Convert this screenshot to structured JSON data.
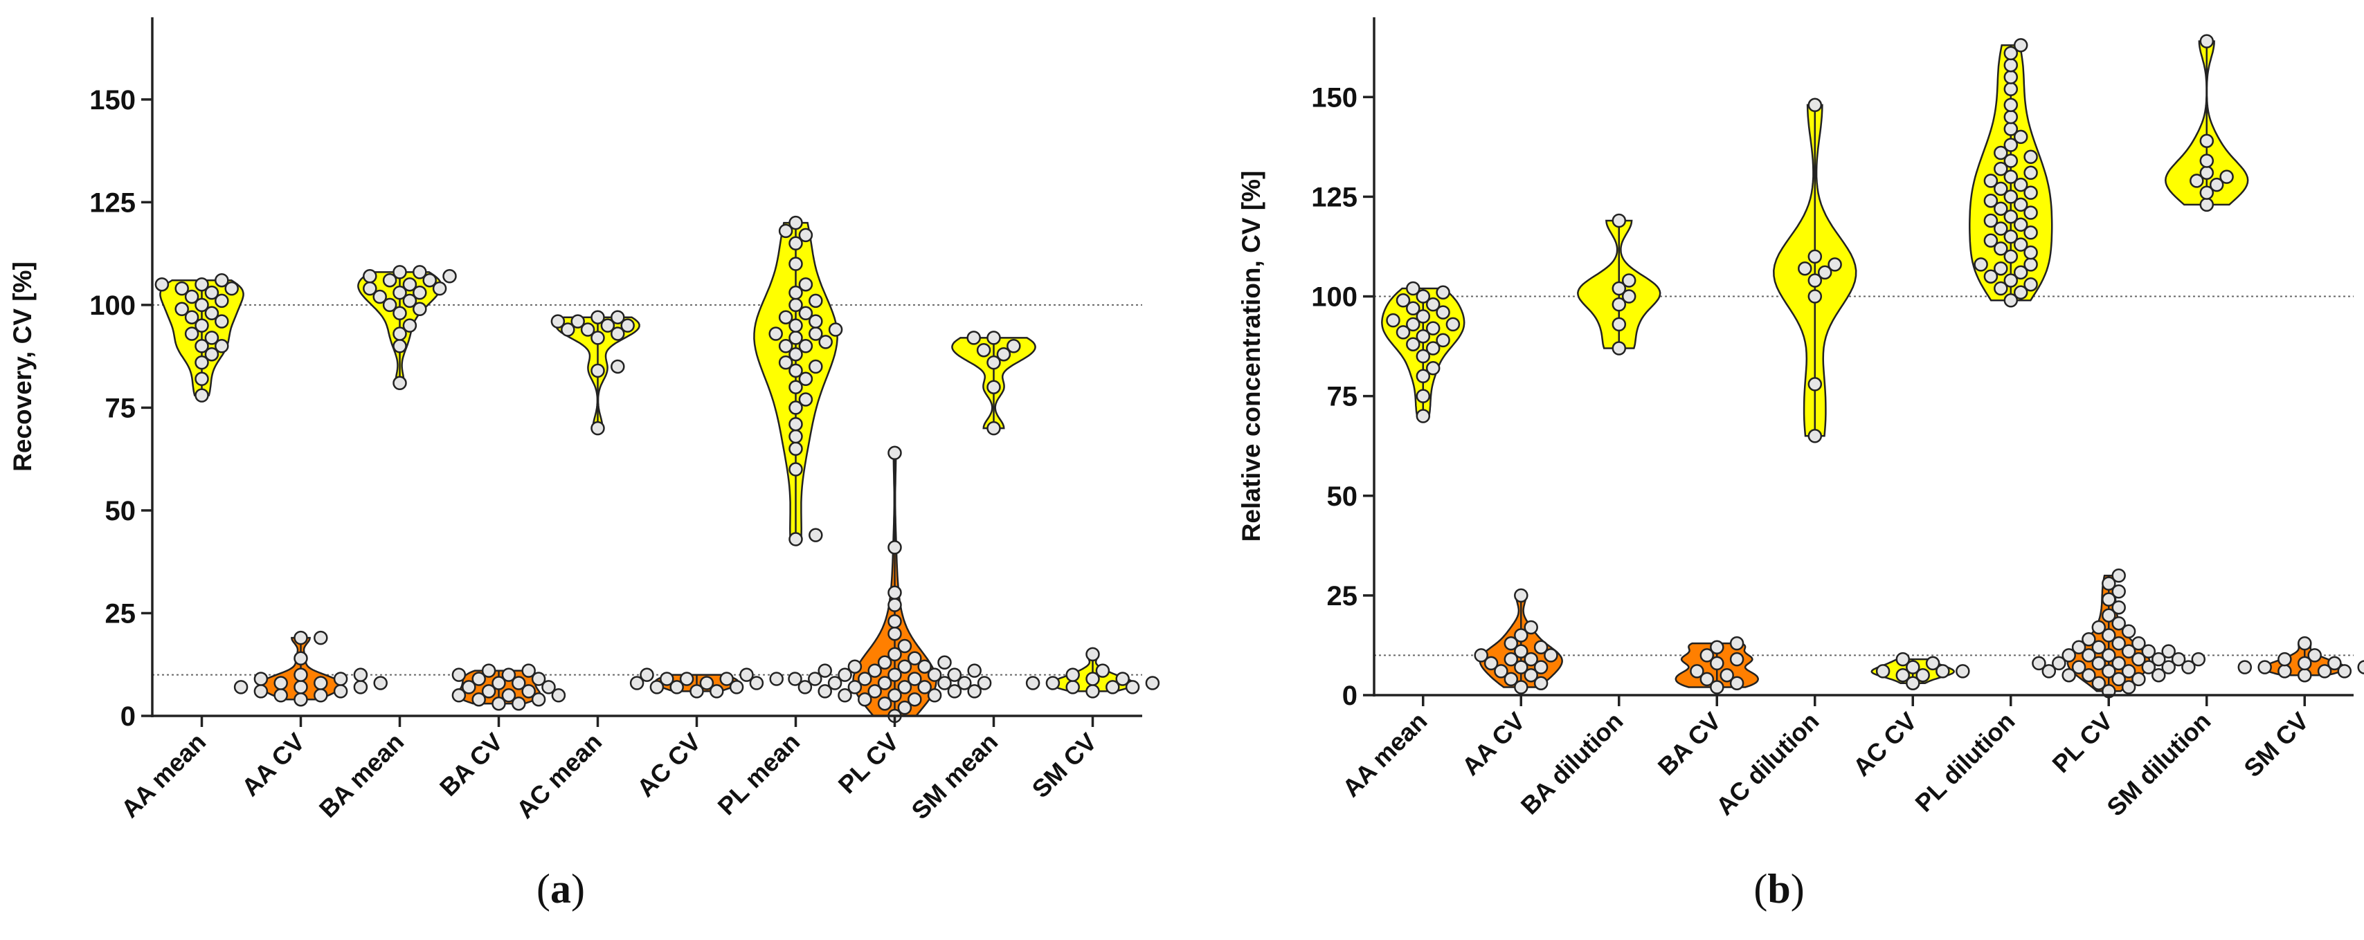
{
  "chart_data": [
    {
      "type": "violin",
      "panel_label": "a",
      "ylabel": "Recovery, CV [%]",
      "ylim": [
        0,
        170
      ],
      "yticks": [
        0,
        25,
        50,
        75,
        100,
        125,
        150
      ],
      "reference_lines": [
        100,
        10
      ],
      "grid": false,
      "categories": [
        "AA mean",
        "AA CV",
        "BA mean",
        "BA CV",
        "AC mean",
        "AC CV",
        "PL mean",
        "PL CV",
        "SM mean",
        "SM CV"
      ],
      "series": [
        {
          "category": "AA mean",
          "color": "#ffff00",
          "points": [
            78,
            82,
            86,
            88,
            90,
            90,
            92,
            93,
            95,
            96,
            97,
            98,
            99,
            100,
            101,
            102,
            103,
            104,
            104,
            105,
            105,
            106
          ]
        },
        {
          "category": "AA CV",
          "color": "#ff7f00",
          "points": [
            4,
            5,
            5,
            6,
            6,
            7,
            7,
            7,
            8,
            8,
            8,
            9,
            9,
            10,
            10,
            14,
            19,
            19
          ]
        },
        {
          "category": "BA mean",
          "color": "#ffff00",
          "points": [
            81,
            90,
            93,
            95,
            98,
            99,
            100,
            101,
            102,
            103,
            103,
            104,
            104,
            105,
            106,
            106,
            107,
            107,
            108,
            108
          ]
        },
        {
          "category": "BA CV",
          "color": "#ff7f00",
          "points": [
            3,
            3,
            4,
            4,
            5,
            5,
            5,
            6,
            6,
            7,
            7,
            8,
            8,
            9,
            9,
            10,
            10,
            11,
            11
          ]
        },
        {
          "category": "AC mean",
          "color": "#ffff00",
          "points": [
            70,
            84,
            85,
            92,
            93,
            94,
            94,
            95,
            95,
            96,
            96,
            97,
            97
          ]
        },
        {
          "category": "AC CV",
          "color": "#ff7f00",
          "points": [
            6,
            6,
            7,
            7,
            7,
            8,
            8,
            8,
            9,
            9,
            9,
            9,
            10,
            10
          ]
        },
        {
          "category": "PL mean",
          "color": "#ffff00",
          "points": [
            43,
            44,
            60,
            65,
            68,
            71,
            75,
            77,
            80,
            82,
            84,
            85,
            86,
            88,
            90,
            90,
            91,
            92,
            93,
            93,
            94,
            95,
            96,
            97,
            98,
            100,
            101,
            103,
            105,
            110,
            115,
            117,
            118,
            120
          ]
        },
        {
          "category": "PL CV",
          "color": "#ff7f00",
          "points": [
            0,
            2,
            3,
            4,
            4,
            5,
            5,
            5,
            6,
            6,
            6,
            6,
            7,
            7,
            7,
            7,
            8,
            8,
            8,
            8,
            8,
            9,
            9,
            9,
            9,
            10,
            10,
            10,
            10,
            11,
            11,
            11,
            12,
            12,
            12,
            13,
            13,
            14,
            15,
            17,
            20,
            23,
            27,
            30,
            41,
            64
          ]
        },
        {
          "category": "SM mean",
          "color": "#ffff00",
          "points": [
            70,
            80,
            86,
            88,
            89,
            90,
            92,
            92
          ]
        },
        {
          "category": "SM CV",
          "color": "#ffff00",
          "points": [
            6,
            7,
            7,
            7,
            8,
            8,
            8,
            9,
            9,
            10,
            11,
            15
          ]
        }
      ]
    },
    {
      "type": "violin",
      "panel_label": "b",
      "ylabel": "Relative concentration, CV [%]",
      "ylim": [
        0,
        170
      ],
      "yticks": [
        0,
        25,
        50,
        75,
        100,
        125,
        150
      ],
      "reference_lines": [
        100,
        10
      ],
      "grid": false,
      "categories": [
        "AA mean",
        "AA CV",
        "BA dilution",
        "BA CV",
        "AC dilution",
        "AC CV",
        "PL dilution",
        "PL CV",
        "SM dilution",
        "SM CV"
      ],
      "series": [
        {
          "category": "AA mean",
          "color": "#ffff00",
          "points": [
            70,
            75,
            80,
            82,
            85,
            87,
            88,
            89,
            90,
            91,
            92,
            93,
            93,
            94,
            95,
            96,
            97,
            98,
            99,
            100,
            101,
            102
          ]
        },
        {
          "category": "AA CV",
          "color": "#ff7f00",
          "points": [
            2,
            3,
            4,
            5,
            6,
            7,
            7,
            8,
            9,
            9,
            10,
            10,
            11,
            12,
            13,
            15,
            17,
            25
          ]
        },
        {
          "category": "BA dilution",
          "color": "#ffff00",
          "points": [
            87,
            93,
            98,
            100,
            102,
            104,
            119
          ]
        },
        {
          "category": "BA CV",
          "color": "#ff7f00",
          "points": [
            2,
            3,
            4,
            5,
            6,
            8,
            9,
            10,
            12,
            13
          ]
        },
        {
          "category": "AC dilution",
          "color": "#ffff00",
          "points": [
            65,
            78,
            100,
            104,
            106,
            107,
            108,
            110,
            148
          ]
        },
        {
          "category": "AC CV",
          "color": "#ffff00",
          "points": [
            3,
            5,
            5,
            6,
            6,
            6,
            7,
            8,
            9
          ]
        },
        {
          "category": "PL dilution",
          "color": "#ffff00",
          "points": [
            99,
            101,
            102,
            103,
            104,
            105,
            106,
            107,
            108,
            108,
            110,
            111,
            112,
            113,
            114,
            115,
            116,
            117,
            118,
            119,
            120,
            121,
            122,
            123,
            124,
            125,
            126,
            127,
            128,
            129,
            130,
            131,
            132,
            134,
            135,
            136,
            138,
            140,
            142,
            145,
            148,
            152,
            155,
            158,
            161,
            163
          ]
        },
        {
          "category": "PL CV",
          "color": "#ff7f00",
          "points": [
            1,
            2,
            3,
            4,
            4,
            5,
            5,
            5,
            6,
            6,
            6,
            7,
            7,
            7,
            7,
            8,
            8,
            8,
            8,
            9,
            9,
            9,
            9,
            10,
            10,
            10,
            11,
            11,
            11,
            12,
            12,
            13,
            13,
            14,
            15,
            16,
            17,
            18,
            20,
            22,
            24,
            26,
            28,
            30
          ]
        },
        {
          "category": "SM dilution",
          "color": "#ffff00",
          "points": [
            123,
            126,
            128,
            129,
            130,
            131,
            134,
            139,
            164
          ]
        },
        {
          "category": "SM CV",
          "color": "#ff7f00",
          "points": [
            5,
            6,
            6,
            6,
            7,
            7,
            7,
            8,
            8,
            9,
            10,
            13
          ]
        }
      ]
    }
  ]
}
